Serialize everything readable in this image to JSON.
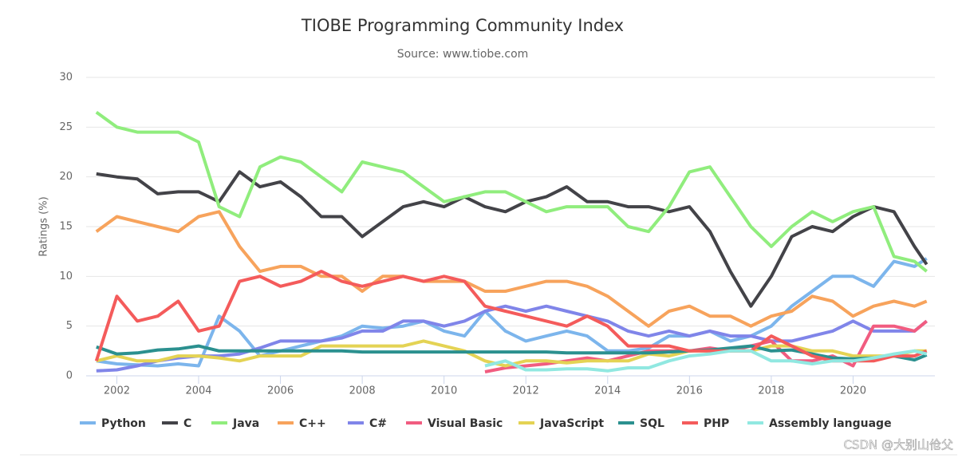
{
  "chart_data": {
    "type": "line",
    "title": "TIOBE Programming Community Index",
    "subtitle": "Source: www.tiobe.com",
    "y_label": "Ratings (%)",
    "x": [
      2001.5,
      2002,
      2002.5,
      2003,
      2003.5,
      2004,
      2004.5,
      2005,
      2005.5,
      2006,
      2006.5,
      2007,
      2007.5,
      2008,
      2008.5,
      2009,
      2009.5,
      2010,
      2010.5,
      2011,
      2011.5,
      2012,
      2012.5,
      2013,
      2013.5,
      2014,
      2014.5,
      2015,
      2015.5,
      2016,
      2016.5,
      2017,
      2017.5,
      2018,
      2018.5,
      2019,
      2019.5,
      2020,
      2020.5,
      2021,
      2021.5,
      2021.8
    ],
    "xlim": [
      2001.25,
      2022
    ],
    "xticks": [
      2002,
      2004,
      2006,
      2008,
      2010,
      2012,
      2014,
      2016,
      2018,
      2020
    ],
    "ylim": [
      0,
      30
    ],
    "yticks": [
      0,
      5,
      10,
      15,
      20,
      25,
      30
    ],
    "grid": true,
    "series": [
      {
        "name": "Python",
        "color": "#7cb5ec",
        "values": [
          1.5,
          1.2,
          1.1,
          1.0,
          1.2,
          1.0,
          6.0,
          4.5,
          2.0,
          2.5,
          3.0,
          3.5,
          4.0,
          5.0,
          4.8,
          5.0,
          5.5,
          4.5,
          4.0,
          6.5,
          4.5,
          3.5,
          4.0,
          4.5,
          4.0,
          2.5,
          2.5,
          2.8,
          4.0,
          4.0,
          4.5,
          3.5,
          4.0,
          5.0,
          7.0,
          8.5,
          10.0,
          10.0,
          9.0,
          11.5,
          11.0,
          11.8
        ]
      },
      {
        "name": "C",
        "color": "#434348",
        "values": [
          20.3,
          20,
          19.8,
          18.3,
          18.5,
          18.5,
          17.5,
          20.5,
          19.0,
          19.5,
          18.0,
          16.0,
          16.0,
          14.0,
          15.5,
          17.0,
          17.5,
          17.0,
          18.0,
          17.0,
          16.5,
          17.5,
          18.0,
          19.0,
          17.5,
          17.5,
          17.0,
          17.0,
          16.5,
          17.0,
          14.5,
          10.5,
          7.0,
          10.0,
          14.0,
          15.0,
          14.5,
          16.0,
          17.0,
          16.5,
          13.0,
          11.2
        ]
      },
      {
        "name": "Java",
        "color": "#90ed7d",
        "values": [
          26.5,
          25,
          24.5,
          24.5,
          24.5,
          23.5,
          17,
          16,
          21,
          22,
          21.5,
          20,
          18.5,
          21.5,
          21,
          20.5,
          19,
          17.5,
          18,
          18.5,
          18.5,
          17.5,
          16.5,
          17,
          17,
          17,
          15,
          14.5,
          17,
          20.5,
          21,
          18,
          15,
          13,
          15,
          16.5,
          15.5,
          16.5,
          17,
          12,
          11.5,
          10.5
        ]
      },
      {
        "name": "C++",
        "color": "#f7a35c",
        "values": [
          14.5,
          16,
          15.5,
          15,
          14.5,
          16,
          16.5,
          13,
          10.5,
          11,
          11,
          10,
          10,
          8.5,
          10,
          10,
          9.5,
          9.5,
          9.5,
          8.5,
          8.5,
          9,
          9.5,
          9.5,
          9,
          8,
          6.5,
          5,
          6.5,
          7,
          6,
          6,
          5,
          6,
          6.5,
          8,
          7.5,
          6,
          7,
          7.5,
          7,
          7.5
        ]
      },
      {
        "name": "C#",
        "color": "#8085e9",
        "values": [
          0.5,
          0.6,
          1,
          1.5,
          1.8,
          2,
          2,
          2.2,
          2.8,
          3.5,
          3.5,
          3.5,
          3.8,
          4.5,
          4.5,
          5.5,
          5.5,
          5,
          5.5,
          6.5,
          7,
          6.5,
          7,
          6.5,
          6,
          5.5,
          4.5,
          4,
          4.5,
          4,
          4.5,
          4,
          4,
          3.5,
          3.5,
          4,
          4.5,
          5.5,
          4.5,
          4.5,
          4.5,
          5.5
        ]
      },
      {
        "name": "Visual Basic",
        "color": "#f15c80",
        "values": [
          null,
          null,
          null,
          null,
          null,
          null,
          null,
          null,
          null,
          null,
          null,
          null,
          null,
          null,
          null,
          null,
          null,
          null,
          null,
          0.4,
          0.8,
          1.0,
          1.2,
          1.5,
          1.8,
          1.5,
          2,
          2.5,
          2.5,
          2.5,
          2.8,
          2.5,
          3,
          3.5,
          1.5,
          1.5,
          2,
          1.0,
          5,
          5,
          4.5,
          5.5
        ]
      },
      {
        "name": "JavaScript",
        "color": "#e4d354",
        "values": [
          1.5,
          2,
          1.5,
          1.5,
          2,
          2,
          1.8,
          1.5,
          2,
          2,
          2,
          3,
          3,
          3,
          3,
          3,
          3.5,
          3,
          2.5,
          1.5,
          1.0,
          1.5,
          1.5,
          1.3,
          1.5,
          1.5,
          1.5,
          2.2,
          2,
          2.5,
          2.5,
          2.5,
          2.5,
          3,
          3,
          2.5,
          2.5,
          2,
          2,
          2,
          2.5,
          2.5
        ]
      },
      {
        "name": "SQL",
        "color": "#2b908f",
        "values": [
          2.9,
          2.2,
          2.3,
          2.6,
          2.7,
          3.0,
          2.5,
          2.5,
          2.5,
          2.5,
          2.5,
          2.5,
          2.5,
          2.4,
          2.4,
          2.4,
          2.4,
          2.4,
          2.4,
          2.4,
          2.4,
          2.4,
          2.4,
          2.3,
          2.3,
          2.3,
          2.3,
          2.3,
          2.4,
          2.5,
          2.6,
          2.8,
          3,
          2.5,
          2.6,
          2.2,
          1.8,
          1.7,
          1.8,
          2,
          1.6,
          2.1
        ]
      },
      {
        "name": "PHP",
        "color": "#f45b5b",
        "values": [
          1.5,
          8,
          5.5,
          6,
          7.5,
          4.5,
          5,
          9.5,
          10,
          9,
          9.5,
          10.5,
          9.5,
          9,
          9.5,
          10,
          9.5,
          10,
          9.5,
          7,
          6.5,
          6,
          5.5,
          5,
          6,
          5,
          3,
          3,
          3,
          2.5,
          2.5,
          2.5,
          2.5,
          4,
          3,
          2,
          1.5,
          1.5,
          1.5,
          2,
          2,
          2.5
        ]
      },
      {
        "name": "Assembly language",
        "color": "#91e8e1",
        "values": [
          null,
          null,
          null,
          null,
          null,
          null,
          null,
          null,
          null,
          null,
          null,
          null,
          null,
          null,
          null,
          null,
          null,
          null,
          null,
          1.0,
          1.5,
          0.6,
          0.6,
          0.7,
          0.7,
          0.5,
          0.8,
          0.8,
          1.5,
          2,
          2.2,
          2.5,
          2.5,
          1.5,
          1.5,
          1.2,
          1.5,
          1.5,
          1.8,
          2.2,
          2.5,
          2.2
        ]
      }
    ]
  },
  "watermark": "CSDN @大别山伧父"
}
